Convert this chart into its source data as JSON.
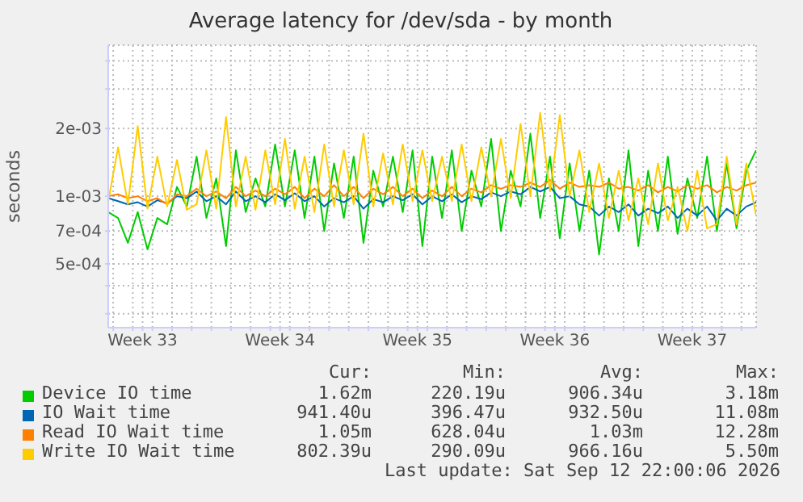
{
  "chart_data": {
    "type": "line",
    "title": "Average latency for /dev/sda - by month",
    "ylabel": "seconds",
    "x": [
      "2026-08-11T18:00",
      "2026-08-12T06:00",
      "2026-08-12T18:00",
      "2026-08-13T06:00",
      "2026-08-13T18:00",
      "2026-08-14T06:00",
      "2026-08-14T18:00",
      "2026-08-15T06:00",
      "2026-08-15T18:00",
      "2026-08-16T06:00",
      "2026-08-16T18:00",
      "2026-08-17T06:00",
      "2026-08-17T18:00",
      "2026-08-18T06:00",
      "2026-08-18T18:00",
      "2026-08-19T06:00",
      "2026-08-19T18:00",
      "2026-08-20T06:00",
      "2026-08-20T18:00",
      "2026-08-21T06:00",
      "2026-08-21T18:00",
      "2026-08-22T06:00",
      "2026-08-22T18:00",
      "2026-08-23T06:00",
      "2026-08-23T18:00",
      "2026-08-24T06:00",
      "2026-08-24T18:00",
      "2026-08-25T06:00",
      "2026-08-25T18:00",
      "2026-08-26T06:00",
      "2026-08-26T18:00",
      "2026-08-27T06:00",
      "2026-08-27T18:00",
      "2026-08-28T06:00",
      "2026-08-28T18:00",
      "2026-08-29T06:00",
      "2026-08-29T18:00",
      "2026-08-30T06:00",
      "2026-08-30T18:00",
      "2026-08-31T06:00",
      "2026-08-31T18:00",
      "2026-09-01T06:00",
      "2026-09-01T18:00",
      "2026-09-02T06:00",
      "2026-09-02T18:00",
      "2026-09-03T06:00",
      "2026-09-03T18:00",
      "2026-09-04T06:00",
      "2026-09-04T18:00",
      "2026-09-05T06:00",
      "2026-09-05T18:00",
      "2026-09-06T06:00",
      "2026-09-06T18:00",
      "2026-09-07T06:00",
      "2026-09-07T18:00",
      "2026-09-08T06:00",
      "2026-09-08T18:00",
      "2026-09-09T06:00",
      "2026-09-09T18:00",
      "2026-09-10T06:00",
      "2026-09-10T18:00",
      "2026-09-11T06:00",
      "2026-09-11T18:00",
      "2026-09-12T06:00",
      "2026-09-12T18:00",
      "2026-09-13T06:00",
      "2026-09-13T18:00"
    ],
    "series": [
      {
        "name": "Device IO time",
        "color": "#00cc00",
        "values": [
          0.00085,
          0.0008,
          0.00062,
          0.00085,
          0.00058,
          0.0008,
          0.00075,
          0.0011,
          0.0009,
          0.0015,
          0.0008,
          0.0012,
          0.0006,
          0.0016,
          0.00085,
          0.0012,
          0.0009,
          0.0017,
          0.0009,
          0.0016,
          0.0008,
          0.0015,
          0.0007,
          0.0014,
          0.0008,
          0.0015,
          0.00062,
          0.0013,
          0.0009,
          0.0015,
          0.00085,
          0.0016,
          0.0006,
          0.0015,
          0.0008,
          0.0016,
          0.0007,
          0.0013,
          0.0009,
          0.0018,
          0.0007,
          0.0013,
          0.0009,
          0.0019,
          0.0008,
          0.0015,
          0.00065,
          0.0014,
          0.0007,
          0.0013,
          0.00055,
          0.0012,
          0.0007,
          0.0016,
          0.0006,
          0.0013,
          0.0007,
          0.0015,
          0.00068,
          0.0012,
          0.0008,
          0.0015,
          0.0007,
          0.0014,
          0.00072,
          0.0013,
          0.0016
        ]
      },
      {
        "name": "IO Wait time",
        "color": "#0066b3",
        "values": [
          0.00098,
          0.00095,
          0.00092,
          0.00094,
          0.0009,
          0.00096,
          0.00093,
          0.001,
          0.00098,
          0.00105,
          0.00095,
          0.001,
          0.00092,
          0.00105,
          0.00095,
          0.001,
          0.00094,
          0.00102,
          0.00096,
          0.00103,
          0.00095,
          0.001,
          0.0009,
          0.00098,
          0.00094,
          0.001,
          0.00088,
          0.00097,
          0.00094,
          0.001,
          0.00096,
          0.00102,
          0.00092,
          0.001,
          0.00095,
          0.00102,
          0.00094,
          0.001,
          0.00097,
          0.00104,
          0.001,
          0.00105,
          0.00102,
          0.0011,
          0.00105,
          0.0011,
          0.00098,
          0.001,
          0.00092,
          0.0009,
          0.00082,
          0.0009,
          0.00085,
          0.00092,
          0.00082,
          0.00088,
          0.00084,
          0.0009,
          0.0008,
          0.00088,
          0.00082,
          0.0009,
          0.00078,
          0.00088,
          0.00082,
          0.0009,
          0.00094
        ]
      },
      {
        "name": "Read IO Wait time",
        "color": "#ff8000",
        "values": [
          0.001,
          0.00102,
          0.00098,
          0.001,
          0.00095,
          0.00098,
          0.00092,
          0.00102,
          0.001,
          0.00108,
          0.001,
          0.00105,
          0.00098,
          0.0011,
          0.001,
          0.00106,
          0.001,
          0.00108,
          0.00102,
          0.0011,
          0.00098,
          0.00108,
          0.001,
          0.00112,
          0.001,
          0.0011,
          0.00098,
          0.00108,
          0.00102,
          0.0011,
          0.001,
          0.00108,
          0.00098,
          0.00106,
          0.001,
          0.0011,
          0.001,
          0.00108,
          0.00104,
          0.00112,
          0.00108,
          0.00112,
          0.0011,
          0.00115,
          0.0011,
          0.00118,
          0.00108,
          0.00115,
          0.0011,
          0.00112,
          0.0011,
          0.00115,
          0.00108,
          0.0011,
          0.00106,
          0.00112,
          0.00104,
          0.0011,
          0.00105,
          0.00112,
          0.00108,
          0.00112,
          0.00104,
          0.0011,
          0.00106,
          0.00112,
          0.00115
        ]
      },
      {
        "name": "Write IO Wait time",
        "color": "#ffcc00",
        "values": [
          0.00095,
          0.00165,
          0.00092,
          0.00205,
          0.00088,
          0.0015,
          0.0009,
          0.00145,
          0.00087,
          0.00092,
          0.0016,
          0.00088,
          0.00225,
          0.0009,
          0.0015,
          0.00087,
          0.0016,
          0.00092,
          0.0018,
          0.00088,
          0.0015,
          0.00085,
          0.0017,
          0.0009,
          0.0016,
          0.00092,
          0.0019,
          0.0009,
          0.00155,
          0.00092,
          0.0017,
          0.00095,
          0.0016,
          0.00095,
          0.0015,
          0.00095,
          0.0017,
          0.00095,
          0.00165,
          0.001,
          0.0018,
          0.00098,
          0.0021,
          0.001,
          0.00235,
          0.00105,
          0.0023,
          0.001,
          0.0016,
          0.00085,
          0.0014,
          0.0008,
          0.0013,
          0.00078,
          0.0012,
          0.00075,
          0.0014,
          0.00078,
          0.0011,
          0.0007,
          0.0013,
          0.00072,
          0.00075,
          0.0015,
          0.00075,
          0.0014,
          0.00082
        ]
      }
    ],
    "log": "y",
    "ylim": [
      0.00026,
      0.0047
    ],
    "yticks": [
      {
        "value": 0.0003,
        "label": null
      },
      {
        "value": 0.0004,
        "label": null
      },
      {
        "value": 0.0005,
        "label": "5e-04"
      },
      {
        "value": 0.0007,
        "label": "7e-04"
      },
      {
        "value": 0.001,
        "label": "1e-03"
      },
      {
        "value": 0.002,
        "label": "2e-03"
      },
      {
        "value": 0.003,
        "label": null
      },
      {
        "value": 0.004,
        "label": null
      }
    ],
    "xlim": [
      "2026-08-11T18:00",
      "2026-09-13T18:00"
    ],
    "xticks": [
      {
        "value": "2026-08-12",
        "label": null
      },
      {
        "value": "2026-08-13",
        "label": null
      },
      {
        "value": "2026-08-13T12:00",
        "label": "Week 33"
      },
      {
        "value": "2026-08-14",
        "label": null
      },
      {
        "value": "2026-08-15",
        "label": null
      },
      {
        "value": "2026-08-16",
        "label": null
      },
      {
        "value": "2026-08-17",
        "label": null
      },
      {
        "value": "2026-08-18",
        "label": null
      },
      {
        "value": "2026-08-19",
        "label": null
      },
      {
        "value": "2026-08-20",
        "label": null
      },
      {
        "value": "2026-08-20T12:00",
        "label": "Week 34"
      },
      {
        "value": "2026-08-21",
        "label": null
      },
      {
        "value": "2026-08-22",
        "label": null
      },
      {
        "value": "2026-08-23",
        "label": null
      },
      {
        "value": "2026-08-24",
        "label": null
      },
      {
        "value": "2026-08-25",
        "label": null
      },
      {
        "value": "2026-08-26",
        "label": null
      },
      {
        "value": "2026-08-27",
        "label": null
      },
      {
        "value": "2026-08-27T12:00",
        "label": "Week 35"
      },
      {
        "value": "2026-08-28",
        "label": null
      },
      {
        "value": "2026-08-29",
        "label": null
      },
      {
        "value": "2026-08-30",
        "label": null
      },
      {
        "value": "2026-08-31",
        "label": null
      },
      {
        "value": "2026-09-01",
        "label": null
      },
      {
        "value": "2026-09-02",
        "label": null
      },
      {
        "value": "2026-09-03",
        "label": null
      },
      {
        "value": "2026-09-03T12:00",
        "label": "Week 36"
      },
      {
        "value": "2026-09-04",
        "label": null
      },
      {
        "value": "2026-09-05",
        "label": null
      },
      {
        "value": "2026-09-06",
        "label": null
      },
      {
        "value": "2026-09-07",
        "label": null
      },
      {
        "value": "2026-09-08",
        "label": null
      },
      {
        "value": "2026-09-09",
        "label": null
      },
      {
        "value": "2026-09-10",
        "label": null
      },
      {
        "value": "2026-09-10T12:00",
        "label": "Week 37"
      },
      {
        "value": "2026-09-11",
        "label": null
      },
      {
        "value": "2026-09-12",
        "label": null
      },
      {
        "value": "2026-09-13",
        "label": null
      }
    ],
    "grid": true,
    "legend": "bottom",
    "marker": "none",
    "line_style": "solid",
    "annotations": [
      "Cur:",
      "Min:",
      "Avg:",
      "Max:",
      "1.62m",
      "220.19u",
      "906.34u",
      "3.18m",
      "941.40u",
      "396.47u",
      "932.50u",
      "11.08m",
      "1.05m",
      "628.04u",
      "1.03m",
      "12.28m",
      "802.39u",
      "290.09u",
      "966.16u",
      "5.50m",
      "Last update: Sat Sep 12 22:00:06 2026"
    ]
  }
}
